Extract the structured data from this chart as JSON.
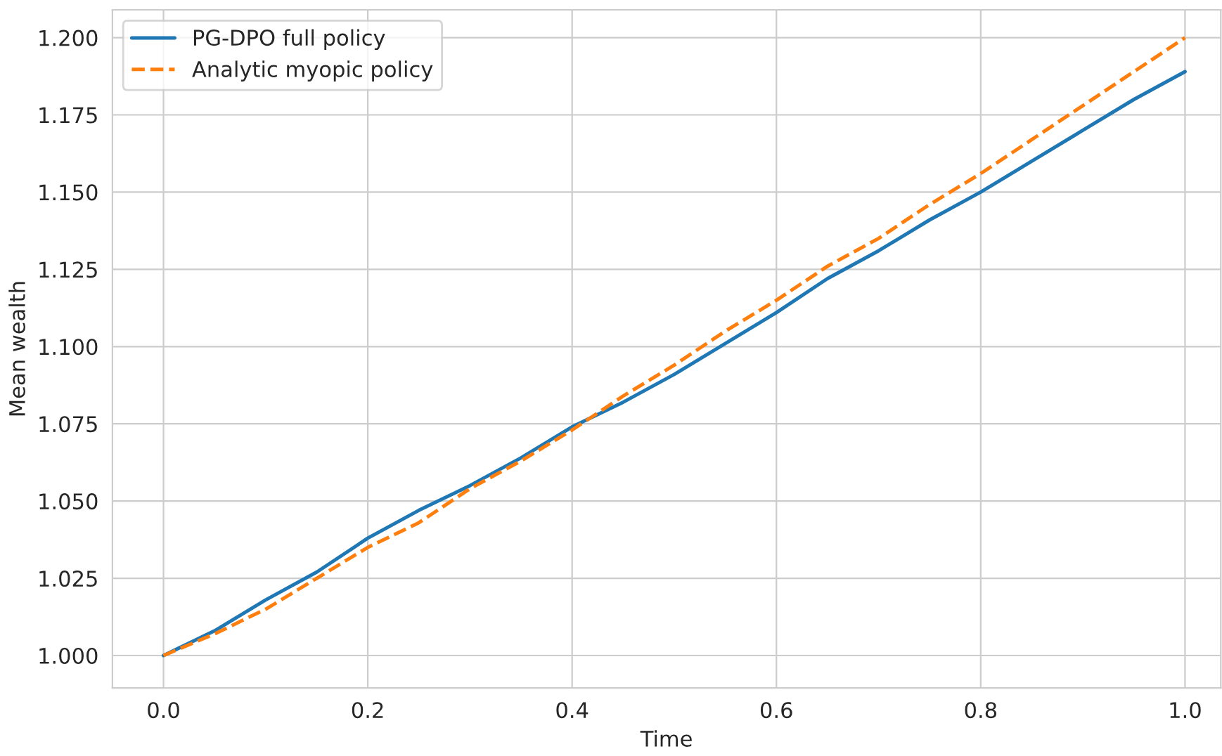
{
  "chart_data": {
    "type": "line",
    "xlabel": "Time",
    "ylabel": "Mean wealth",
    "x": [
      0,
      0.05,
      0.1,
      0.15,
      0.2,
      0.25,
      0.3,
      0.35,
      0.4,
      0.45,
      0.5,
      0.55,
      0.6,
      0.65,
      0.7,
      0.75,
      0.8,
      0.85,
      0.9,
      0.95,
      1.0
    ],
    "series": [
      {
        "name": "PG-DPO full policy",
        "color": "#1f77b4",
        "line_style": "solid",
        "values": [
          1.0,
          1.008,
          1.018,
          1.027,
          1.038,
          1.047,
          1.055,
          1.064,
          1.074,
          1.082,
          1.091,
          1.101,
          1.111,
          1.122,
          1.131,
          1.141,
          1.15,
          1.16,
          1.17,
          1.18,
          1.189
        ]
      },
      {
        "name": "Analytic myopic policy",
        "color": "#ff7f0e",
        "line_style": "dashed",
        "values": [
          1.0,
          1.007,
          1.015,
          1.025,
          1.035,
          1.043,
          1.054,
          1.063,
          1.073,
          1.084,
          1.094,
          1.105,
          1.115,
          1.126,
          1.135,
          1.146,
          1.156,
          1.167,
          1.178,
          1.189,
          1.2
        ]
      }
    ],
    "xlim": [
      -0.05,
      1.035
    ],
    "ylim": [
      0.9895,
      1.209
    ],
    "xticks": [
      {
        "value": 0,
        "label": "0.0"
      },
      0.2,
      0.4,
      0.6,
      0.8,
      {
        "value": 1,
        "label": "1.0"
      }
    ],
    "yticks": [
      {
        "value": 1,
        "label": "1.000"
      },
      {
        "value": 1.025,
        "label": "1.025"
      },
      {
        "value": 1.05,
        "label": "1.050"
      },
      {
        "value": 1.075,
        "label": "1.075"
      },
      {
        "value": 1.1,
        "label": "1.100"
      },
      {
        "value": 1.125,
        "label": "1.125"
      },
      {
        "value": 1.15,
        "label": "1.150"
      },
      {
        "value": 1.175,
        "label": "1.175"
      },
      {
        "value": 1.2,
        "label": "1.200"
      }
    ],
    "grid": true,
    "legend": "top left",
    "marker": "none"
  }
}
